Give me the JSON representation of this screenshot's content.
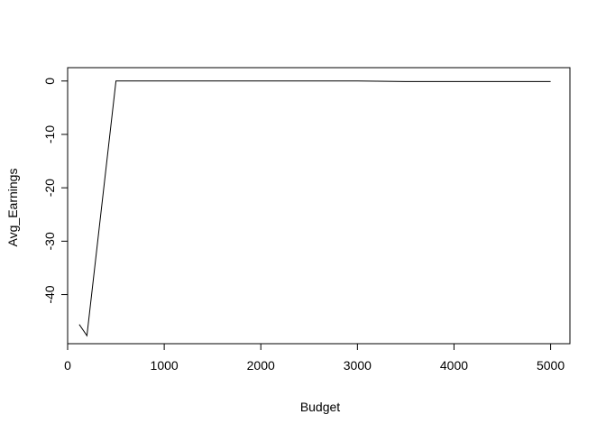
{
  "chart_data": {
    "type": "line",
    "title": "",
    "xlabel": "Budget",
    "ylabel": "Avg_Earnings",
    "xlim": [
      0,
      5200
    ],
    "ylim": [
      -49.2,
      2.5
    ],
    "x_ticks": [
      0,
      1000,
      2000,
      3000,
      4000,
      5000
    ],
    "y_ticks": [
      0,
      -10,
      -20,
      -30,
      -40
    ],
    "grid": false,
    "legend": "none",
    "series": [
      {
        "x": [
          120,
          200,
          500,
          1000,
          2000,
          3000,
          3500,
          4000,
          4500,
          5000
        ],
        "y": [
          -45.6,
          -47.7,
          0,
          0,
          0,
          0,
          -0.1,
          -0.1,
          -0.1,
          -0.1
        ]
      }
    ],
    "colors": {
      "line": "#000000",
      "axes": "#000000",
      "background": "#ffffff"
    }
  }
}
